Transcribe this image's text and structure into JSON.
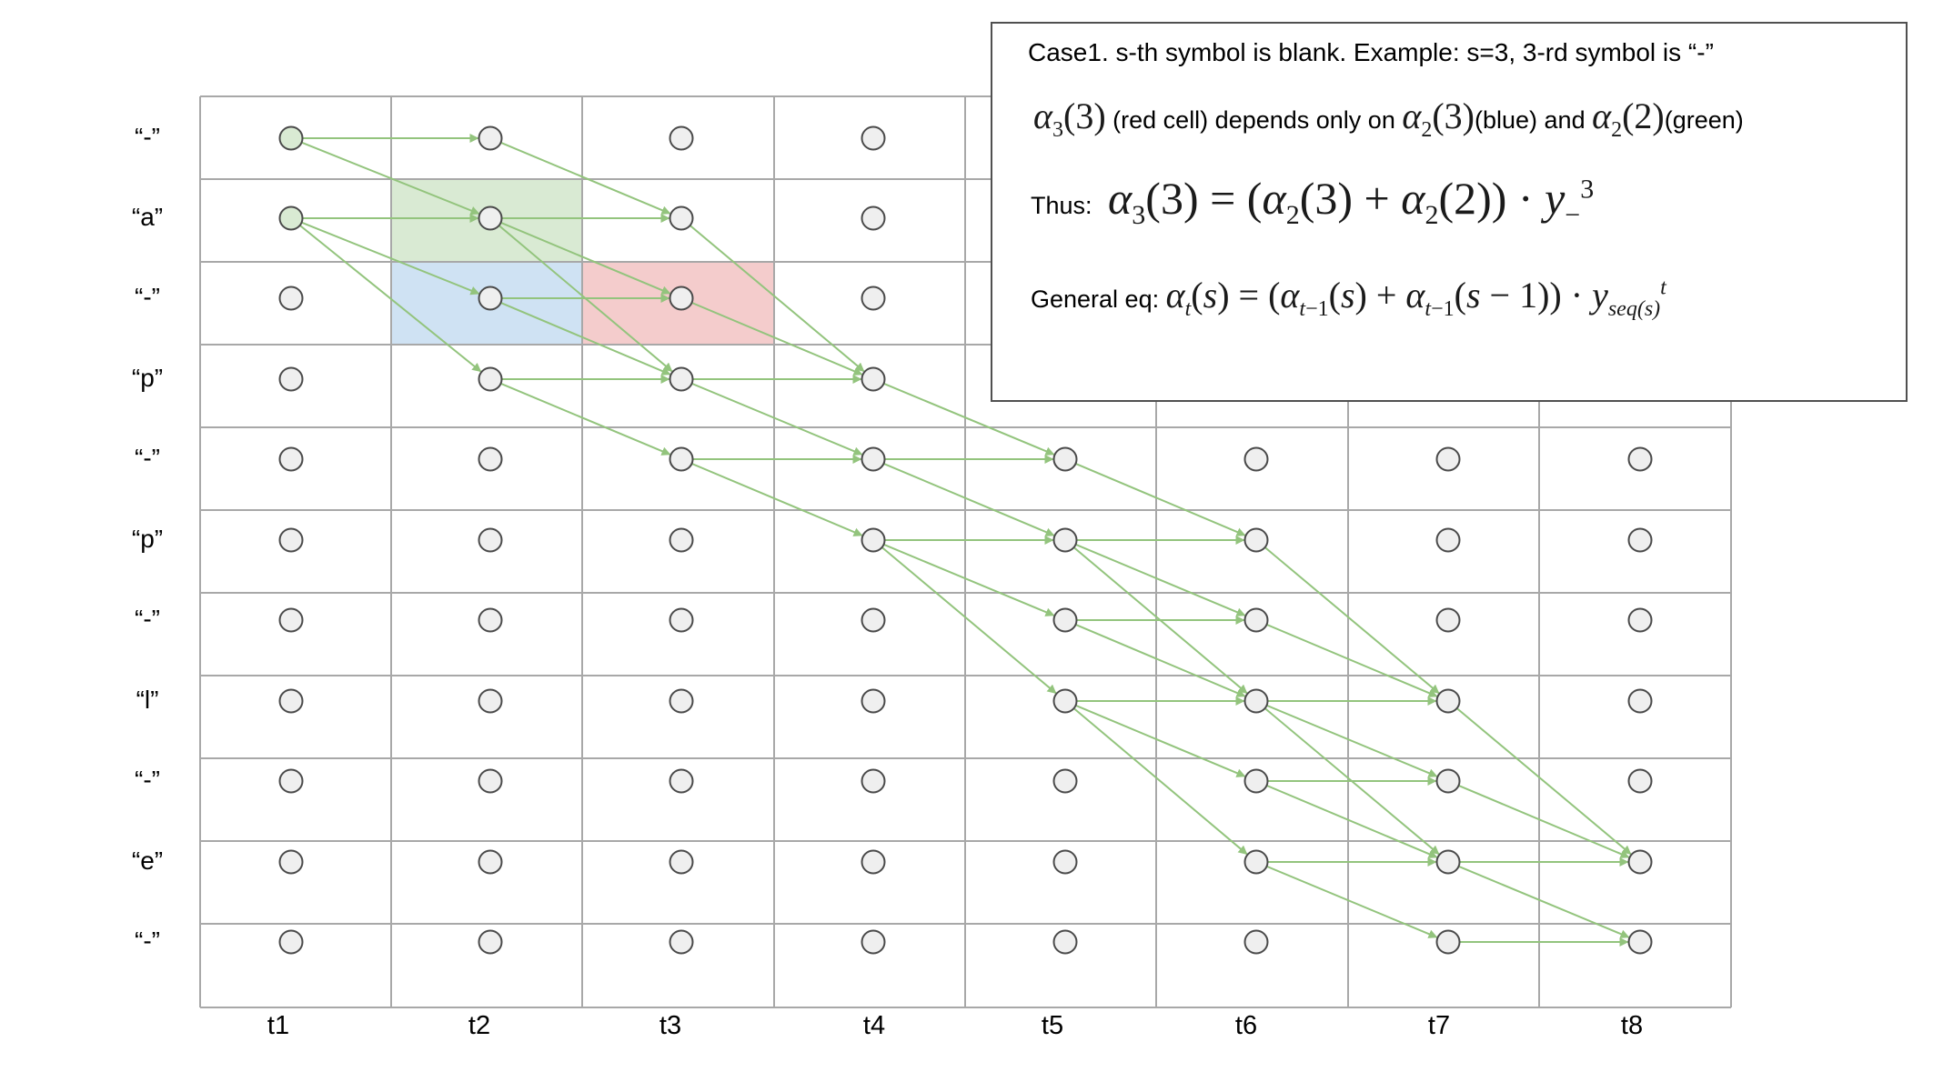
{
  "grid": {
    "row_labels": [
      "“-”",
      "“a”",
      "“-”",
      "“p”",
      "“-”",
      "“p”",
      "“-”",
      "“l”",
      "“-”",
      "“e”",
      "“-”"
    ],
    "col_labels": [
      "t1",
      "t2",
      "t3",
      "t4",
      "t5",
      "t6",
      "t7",
      "t8"
    ],
    "highlight_cells": [
      {
        "col": 2,
        "row": 2,
        "role": "green",
        "color": "#d9ead3"
      },
      {
        "col": 2,
        "row": 3,
        "role": "blue",
        "color": "#cfe2f3"
      },
      {
        "col": 3,
        "row": 3,
        "role": "red",
        "color": "#f4cccc"
      }
    ],
    "highlight_nodes": [
      {
        "col": 1,
        "row": 1,
        "color": "#d9ead3"
      },
      {
        "col": 1,
        "row": 2,
        "color": "#d9ead3"
      }
    ],
    "arrow_color": "#93c47d",
    "arrows": [
      [
        [
          1,
          1
        ],
        [
          2,
          1
        ]
      ],
      [
        [
          1,
          1
        ],
        [
          2,
          2
        ]
      ],
      [
        [
          1,
          2
        ],
        [
          2,
          2
        ]
      ],
      [
        [
          1,
          2
        ],
        [
          2,
          3
        ]
      ],
      [
        [
          1,
          2
        ],
        [
          2,
          4
        ]
      ],
      [
        [
          2,
          1
        ],
        [
          3,
          2
        ]
      ],
      [
        [
          2,
          2
        ],
        [
          3,
          2
        ]
      ],
      [
        [
          2,
          2
        ],
        [
          3,
          3
        ]
      ],
      [
        [
          2,
          2
        ],
        [
          3,
          4
        ]
      ],
      [
        [
          2,
          3
        ],
        [
          3,
          3
        ]
      ],
      [
        [
          2,
          3
        ],
        [
          3,
          4
        ]
      ],
      [
        [
          2,
          4
        ],
        [
          3,
          4
        ]
      ],
      [
        [
          2,
          4
        ],
        [
          3,
          5
        ]
      ],
      [
        [
          3,
          2
        ],
        [
          4,
          4
        ]
      ],
      [
        [
          3,
          3
        ],
        [
          4,
          4
        ]
      ],
      [
        [
          3,
          4
        ],
        [
          4,
          4
        ]
      ],
      [
        [
          3,
          4
        ],
        [
          4,
          5
        ]
      ],
      [
        [
          3,
          5
        ],
        [
          4,
          5
        ]
      ],
      [
        [
          3,
          5
        ],
        [
          4,
          6
        ]
      ],
      [
        [
          4,
          4
        ],
        [
          5,
          5
        ]
      ],
      [
        [
          4,
          5
        ],
        [
          5,
          5
        ]
      ],
      [
        [
          4,
          5
        ],
        [
          5,
          6
        ]
      ],
      [
        [
          4,
          6
        ],
        [
          5,
          6
        ]
      ],
      [
        [
          4,
          6
        ],
        [
          5,
          7
        ]
      ],
      [
        [
          4,
          6
        ],
        [
          5,
          8
        ]
      ],
      [
        [
          5,
          5
        ],
        [
          6,
          6
        ]
      ],
      [
        [
          5,
          6
        ],
        [
          6,
          6
        ]
      ],
      [
        [
          5,
          6
        ],
        [
          6,
          7
        ]
      ],
      [
        [
          5,
          6
        ],
        [
          6,
          8
        ]
      ],
      [
        [
          5,
          7
        ],
        [
          6,
          7
        ]
      ],
      [
        [
          5,
          7
        ],
        [
          6,
          8
        ]
      ],
      [
        [
          5,
          8
        ],
        [
          6,
          8
        ]
      ],
      [
        [
          5,
          8
        ],
        [
          6,
          9
        ]
      ],
      [
        [
          5,
          8
        ],
        [
          6,
          10
        ]
      ],
      [
        [
          6,
          6
        ],
        [
          7,
          8
        ]
      ],
      [
        [
          6,
          7
        ],
        [
          7,
          8
        ]
      ],
      [
        [
          6,
          8
        ],
        [
          7,
          8
        ]
      ],
      [
        [
          6,
          8
        ],
        [
          7,
          9
        ]
      ],
      [
        [
          6,
          8
        ],
        [
          7,
          10
        ]
      ],
      [
        [
          6,
          9
        ],
        [
          7,
          9
        ]
      ],
      [
        [
          6,
          9
        ],
        [
          7,
          10
        ]
      ],
      [
        [
          6,
          10
        ],
        [
          7,
          10
        ]
      ],
      [
        [
          6,
          10
        ],
        [
          7,
          11
        ]
      ],
      [
        [
          7,
          8
        ],
        [
          8,
          10
        ]
      ],
      [
        [
          7,
          9
        ],
        [
          8,
          10
        ]
      ],
      [
        [
          7,
          10
        ],
        [
          8,
          10
        ]
      ],
      [
        [
          7,
          10
        ],
        [
          8,
          11
        ]
      ],
      [
        [
          7,
          11
        ],
        [
          8,
          11
        ]
      ]
    ]
  },
  "textbox": {
    "line1": "Case1. s-th symbol is blank. Example: s=3, 3-rd symbol is “-”",
    "line2": {
      "math_a": "α₃(3)",
      "text_a": "(red cell) depends only on",
      "math_b": "α₂(3)",
      "text_b": "(blue) and",
      "math_c": "α₂(2)",
      "text_c": "(green)"
    },
    "line3": {
      "prefix": "Thus:",
      "equation": "α₃(3) = (α₂(3) + α₂(2)) · y₋³"
    },
    "line4": {
      "prefix": "General eq:",
      "equation": "αₜ(s) = (αₜ₋₁(s) + αₜ₋₁(s − 1)) · yₛₑq₍ₛ₎ᵗ"
    }
  }
}
